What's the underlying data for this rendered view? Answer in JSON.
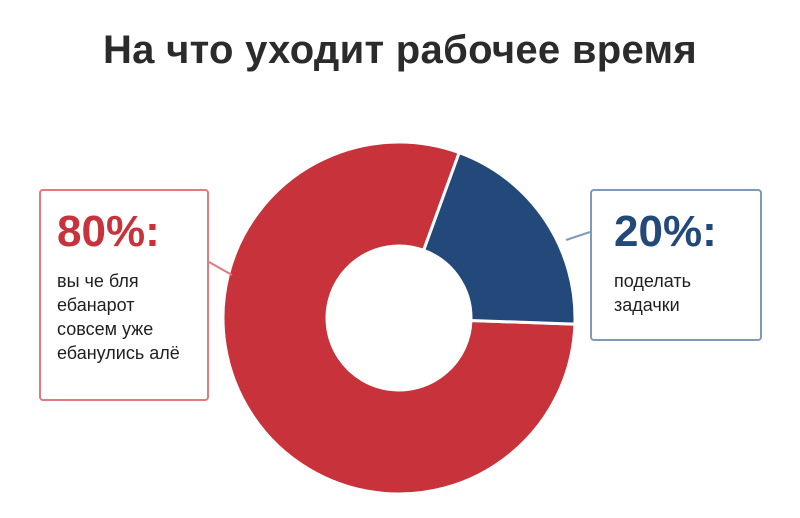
{
  "chart_data": {
    "type": "pie",
    "title": "На что уходит рабочее время",
    "slices": [
      {
        "value": 80,
        "label": "80%:",
        "description": "вы че бля\nебанарот\nсовсем уже\nебанулись алё",
        "color": "#c8323a"
      },
      {
        "value": 20,
        "label": "20%:",
        "description": "поделать\nзадачки",
        "color": "#23497a"
      }
    ],
    "donut": true,
    "legend": "callouts-left-right"
  }
}
